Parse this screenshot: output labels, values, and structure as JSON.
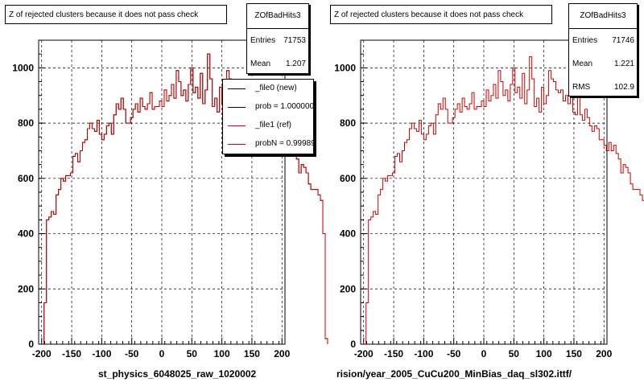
{
  "chart_data": [
    {
      "type": "histogram",
      "title": "Z of rejected clusters  because it does not pass check",
      "xlabel": "st_physics_6048025_raw_1020002",
      "xlim": [
        -205,
        205
      ],
      "ylim": [
        0,
        1100
      ],
      "xticks": [
        -200,
        -150,
        -100,
        -50,
        0,
        50,
        100,
        150,
        200
      ],
      "yticks": [
        0,
        200,
        400,
        600,
        800,
        1000
      ],
      "grid": true,
      "bin_width": 4,
      "x_start": -196,
      "series": [
        {
          "name": "_file0 (new)",
          "color": "#000000",
          "values": [
            150,
            450,
            460,
            480,
            470,
            540,
            560,
            600,
            590,
            610,
            610,
            620,
            680,
            690,
            660,
            700,
            730,
            740,
            780,
            800,
            780,
            770,
            810,
            760,
            740,
            760,
            790,
            800,
            760,
            830,
            870,
            850,
            890,
            850,
            800,
            800,
            820,
            850,
            870,
            840,
            890,
            860,
            850,
            870,
            910,
            850,
            860,
            860,
            880,
            860,
            920,
            880,
            900,
            940,
            890,
            990,
            950,
            900,
            920,
            880,
            940,
            1000,
            910,
            930,
            890,
            980,
            870,
            920,
            1050,
            960,
            860,
            890,
            840,
            930,
            870,
            900,
            990,
            960,
            950,
            920,
            910,
            920,
            880,
            900,
            870,
            920,
            840,
            830,
            900,
            830,
            810,
            850,
            820,
            790,
            770,
            790,
            780,
            740,
            740,
            720,
            700,
            730,
            700,
            720,
            690,
            670,
            620,
            650,
            640,
            620,
            580,
            560,
            560,
            560,
            540,
            520,
            400,
            20
          ]
        },
        {
          "name": "_file1 (ref)",
          "color": "#cc0000",
          "same_as": "_file0 (new)"
        }
      ],
      "stats": {
        "name": "ZOfBadHits3",
        "rows": [
          {
            "k": "Entries",
            "v": "71753"
          },
          {
            "k": "Mean",
            "v": "1.207"
          }
        ]
      },
      "legend": [
        {
          "label": "_file0 (new)",
          "color": "#000000"
        },
        {
          "label": "prob = 1.000000",
          "color": "#000000"
        },
        {
          "label": "_file1 (ref)",
          "color": "#cc0000"
        },
        {
          "label": "probN = 0.999897",
          "color": "#cc0000"
        }
      ]
    },
    {
      "type": "histogram",
      "title": "Z of rejected clusters  because it does not pass check",
      "xlabel": "rision/year_2005_CuCu200_MinBias_daq_sl302.ittf/",
      "xlim": [
        -205,
        205
      ],
      "ylim": [
        0,
        1100
      ],
      "xticks": [
        -200,
        -150,
        -100,
        -50,
        0,
        50,
        100,
        150,
        200
      ],
      "yticks": [
        0,
        200,
        400,
        600,
        800,
        1000
      ],
      "grid": true,
      "bin_width": 4,
      "x_start": -196,
      "series": [
        {
          "name": "",
          "color": "#cc0000",
          "values": [
            150,
            450,
            460,
            480,
            470,
            540,
            560,
            600,
            590,
            610,
            610,
            620,
            680,
            690,
            660,
            700,
            730,
            740,
            780,
            800,
            780,
            770,
            810,
            760,
            740,
            760,
            790,
            800,
            760,
            830,
            870,
            850,
            890,
            850,
            800,
            800,
            820,
            850,
            870,
            840,
            890,
            860,
            850,
            870,
            910,
            850,
            860,
            860,
            880,
            860,
            920,
            880,
            900,
            940,
            890,
            990,
            950,
            900,
            920,
            880,
            940,
            1000,
            910,
            930,
            890,
            980,
            870,
            920,
            1040,
            960,
            860,
            890,
            840,
            930,
            870,
            900,
            990,
            960,
            950,
            920,
            910,
            920,
            880,
            900,
            870,
            920,
            840,
            830,
            900,
            830,
            810,
            850,
            820,
            790,
            770,
            790,
            780,
            740,
            740,
            720,
            700,
            730,
            700,
            720,
            690,
            670,
            620,
            650,
            640,
            620,
            580,
            560,
            560,
            560,
            540,
            520,
            400,
            20
          ]
        }
      ],
      "stats": {
        "name": "ZOfBadHits3",
        "rows": [
          {
            "k": "Entries",
            "v": "71746"
          },
          {
            "k": "Mean",
            "v": "1.221"
          },
          {
            "k": "RMS",
            "v": "102.9"
          }
        ]
      }
    }
  ]
}
